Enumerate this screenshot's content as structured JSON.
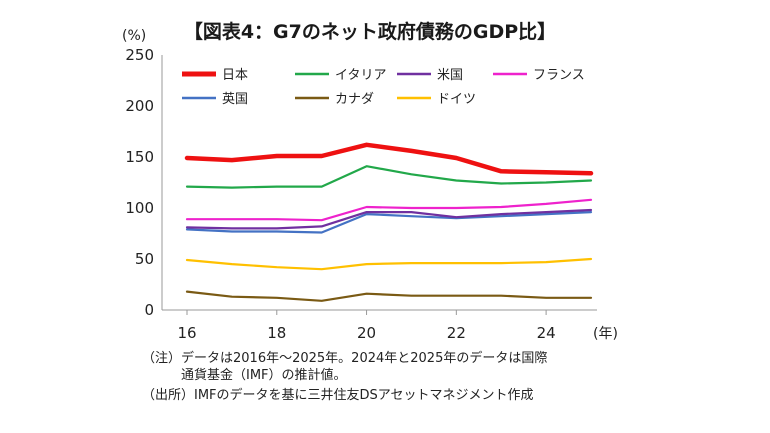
{
  "chart_data": {
    "type": "line",
    "title": "【図表4：G7のネット政府債務のGDP比】",
    "ylabel": "(%)",
    "xlabel": "(年)",
    "ylim": [
      0,
      250
    ],
    "xlim": [
      16,
      25
    ],
    "x": [
      16,
      17,
      18,
      19,
      20,
      21,
      22,
      23,
      24,
      25
    ],
    "y_ticks": [
      "0",
      "50",
      "100",
      "150",
      "200",
      "250"
    ],
    "x_ticks": [
      "16",
      "18",
      "20",
      "22",
      "24"
    ],
    "grid": false,
    "legend_position": "top-left",
    "series": [
      {
        "name": "日本",
        "color": "#ee1111",
        "width": 4.5,
        "values": [
          149,
          147,
          151,
          151,
          162,
          156,
          149,
          136,
          135,
          134
        ]
      },
      {
        "name": "イタリア",
        "color": "#22a84a",
        "width": 2.2,
        "values": [
          121,
          120,
          121,
          121,
          141,
          133,
          127,
          124,
          125,
          127
        ]
      },
      {
        "name": "米国",
        "color": "#7030a0",
        "width": 2.2,
        "values": [
          81,
          80,
          80,
          82,
          96,
          96,
          91,
          94,
          96,
          98
        ]
      },
      {
        "name": "フランス",
        "color": "#ee22cc",
        "width": 2.2,
        "values": [
          89,
          89,
          89,
          88,
          101,
          100,
          100,
          101,
          104,
          108
        ]
      },
      {
        "name": "英国",
        "color": "#4472c4",
        "width": 2.2,
        "values": [
          79,
          77,
          77,
          76,
          94,
          92,
          90,
          92,
          94,
          96
        ]
      },
      {
        "name": "カナダ",
        "color": "#7a5a14",
        "width": 2.2,
        "values": [
          18,
          13,
          12,
          9,
          16,
          14,
          14,
          14,
          12,
          12
        ]
      },
      {
        "name": "ドイツ",
        "color": "#ffc000",
        "width": 2.2,
        "values": [
          49,
          45,
          42,
          40,
          45,
          46,
          46,
          46,
          47,
          50
        ]
      }
    ]
  },
  "notes": [
    "（注）データは2016年～2025年。2024年と2025年のデータは国際",
    "　　　通貨基金（IMF）の推計値。",
    "（出所）IMFのデータを基に三井住友DSアセットマネジメント作成"
  ]
}
